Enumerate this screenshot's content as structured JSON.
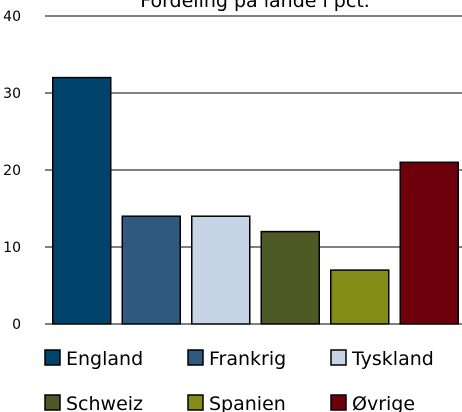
{
  "chart_data": {
    "type": "bar",
    "title": "Fordeling på lande i pct.",
    "categories": [
      "England",
      "Frankrig",
      "Tyskland",
      "Schweiz",
      "Spanien",
      "Øvrige"
    ],
    "values": [
      32,
      14,
      14,
      12,
      7,
      21
    ],
    "colors": [
      "#00446b",
      "#2e5a80",
      "#c7d4e5",
      "#4e5a26",
      "#848c17",
      "#6e000c"
    ],
    "ylim": [
      0,
      40
    ],
    "yticks": [
      0,
      10,
      20,
      30,
      40
    ],
    "grid": true,
    "legend_position": "bottom"
  }
}
